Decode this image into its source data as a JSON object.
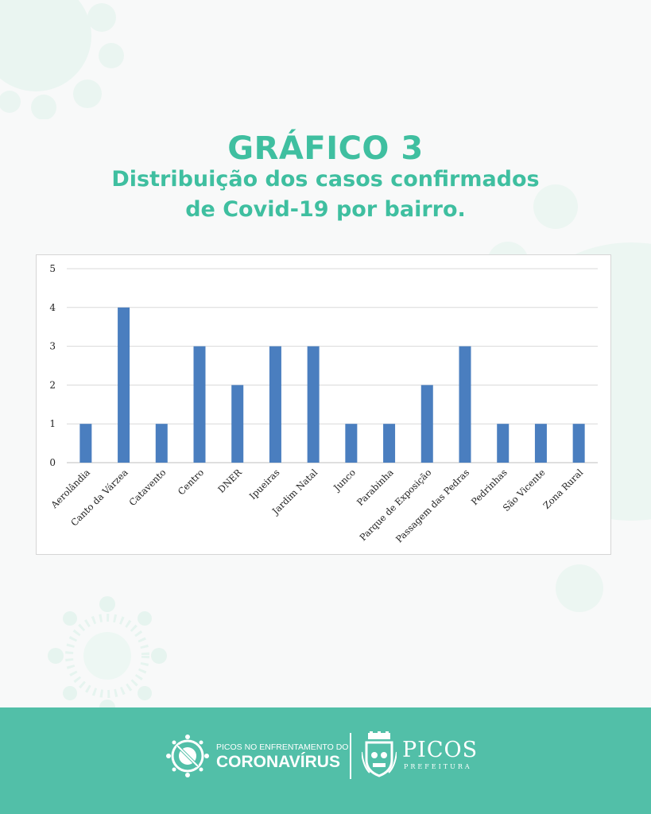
{
  "header": {
    "title": "GRÁFICO 3",
    "subtitle_line1": "Distribuição dos casos confirmados",
    "subtitle_line2": "de Covid-19 por bairro."
  },
  "colors": {
    "accent": "#3fbfa0",
    "footer": "#52bfa8",
    "bar": "#4a7ebf",
    "grid": "#d9d9d9"
  },
  "chart_data": {
    "type": "bar",
    "categories": [
      "Aerolândia",
      "Canto da Várzea",
      "Catavento",
      "Centro",
      "DNER",
      "Ipueiras",
      "Jardim Natal",
      "Junco",
      "Parabinha",
      "Parque de Exposição",
      "Passagem das Pedras",
      "Pedrinhas",
      "São Vicente",
      "Zona Rural"
    ],
    "values": [
      1,
      4,
      1,
      3,
      2,
      3,
      3,
      1,
      1,
      2,
      3,
      1,
      1,
      1
    ],
    "ylim": [
      0,
      5
    ],
    "yticks": [
      "0",
      "1",
      "2",
      "3",
      "4",
      "5"
    ],
    "grid": true,
    "legend": "none"
  },
  "footer": {
    "campaign_top": "PICOS NO ENFRENTAMENTO DO",
    "campaign_main": "CORONAVÍRUS",
    "city_name": "PICOS",
    "city_sub": "PREFEITURA",
    "icons": [
      "virus-crossed-icon",
      "city-crest-icon"
    ]
  }
}
